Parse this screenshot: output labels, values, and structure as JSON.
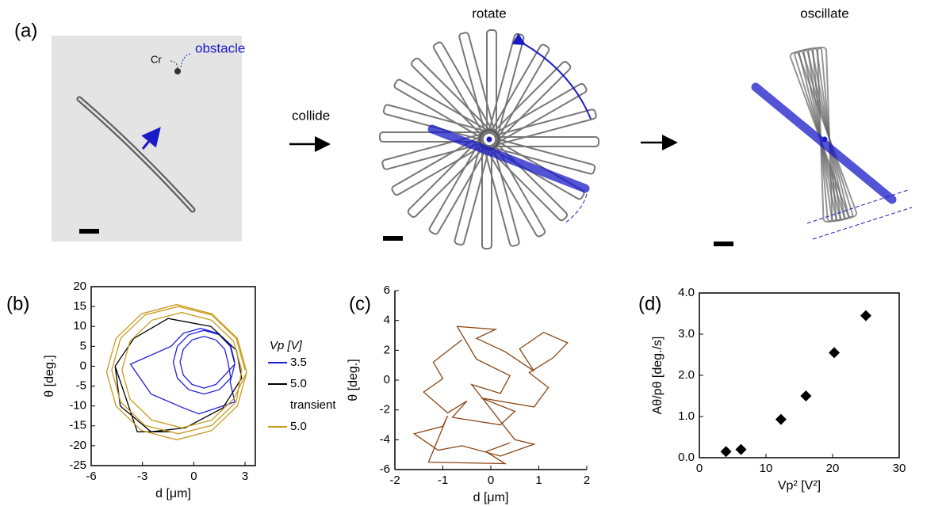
{
  "panel_a": {
    "label": "(a)",
    "cr": "Cr",
    "obstacle": "obstacle",
    "collide": "collide",
    "rotate": "rotate",
    "oscillate": "oscillate"
  },
  "chart_data": [
    {
      "type": "line",
      "panel_label": "(b)",
      "frame": true,
      "xlim": [
        -6,
        3.6
      ],
      "xticks": [
        -6,
        -3,
        0,
        3
      ],
      "ylim": [
        -25,
        20
      ],
      "yticks": [
        -25,
        -20,
        -15,
        -10,
        -5,
        0,
        5,
        10,
        15,
        20
      ],
      "xlabel": "d [μm]",
      "ylabel": "θ [deg.]",
      "legend_title": "Vp [V]",
      "series": [
        {
          "name": "3.5",
          "color": "#1f1fd6",
          "x": [
            2.4,
            2.16,
            1.5,
            0.6,
            -0.3,
            -0.96,
            -1.2,
            -0.96,
            -0.3,
            0.6,
            1.5,
            2.16,
            2.0,
            1.81,
            1.3,
            0.6,
            -0.1,
            -0.61,
            -0.8,
            -0.61,
            -0.1,
            0.6,
            1.3,
            1.81,
            2.4,
            2.13,
            1.4,
            0.4,
            -0.6,
            -1.33,
            -3.7,
            -2.5,
            -0.6,
            0.3,
            2.4,
            2.13,
            2.4
          ],
          "values": [
            1,
            5,
            7.9,
            9,
            7.9,
            5,
            1,
            -3,
            -5.9,
            -7,
            -5.9,
            -3,
            1,
            4.25,
            6.6,
            7.5,
            6.6,
            4.25,
            1,
            -2.25,
            -4.6,
            -5.5,
            -4.6,
            -2.25,
            0.5,
            5,
            8.3,
            9.5,
            8.3,
            5,
            0.5,
            -7,
            -10.5,
            -12,
            -9,
            -4,
            0.5
          ]
        },
        {
          "name": "5.0",
          "color": "#000000",
          "x": [
            -4.6,
            -3.5,
            -1.5,
            1,
            2.5,
            2.8,
            1.7,
            -0.5,
            -2.5,
            -4.3,
            -4.6,
            -3.3,
            -1.3
          ],
          "values": [
            0,
            7,
            12,
            10,
            4,
            -3,
            -10.5,
            -15.5,
            -16.5,
            -10,
            0,
            -16.5,
            -16.5
          ]
        },
        {
          "name": "5.0",
          "note": "transient",
          "color": "#c89a1e",
          "x": [
            3.0,
            2.48,
            1.05,
            -0.9,
            -2.85,
            -4.28,
            -4.8,
            -4.28,
            -2.85,
            -0.9,
            1.05,
            2.48,
            2.8,
            2.33,
            1.05,
            -0.7,
            -2.45,
            -3.73,
            -4.2,
            -3.73,
            -2.45,
            -0.7,
            1.05,
            2.33,
            3.1,
            2.55,
            1.05,
            -1,
            -3.05,
            -4.55,
            -5.1,
            -4.55,
            -3.05,
            -1,
            1.05,
            2.55,
            3.1
          ],
          "values": [
            -1,
            7,
            12.9,
            15,
            12.9,
            7,
            -1,
            -9,
            -14.9,
            -17,
            -14.9,
            -9,
            -1,
            6.25,
            11.56,
            13.5,
            11.56,
            6.25,
            -1,
            -8.25,
            -13.56,
            -15.5,
            -13.56,
            -8.25,
            -1.5,
            7,
            13.2,
            15.5,
            13.2,
            7,
            -1.5,
            -10,
            -16.2,
            -18.5,
            -16.2,
            -10,
            -1.5
          ]
        }
      ]
    },
    {
      "type": "line",
      "panel_label": "(c)",
      "frame": false,
      "xlim": [
        -2,
        2
      ],
      "xticks": [
        -2,
        -1,
        0,
        1,
        2
      ],
      "ylim": [
        -6,
        6
      ],
      "yticks": [
        -6,
        -4,
        -2,
        0,
        2,
        4,
        6
      ],
      "xlabel": "d [μm]",
      "ylabel": "θ [deg.]",
      "series": [
        {
          "color": "#8b4513",
          "x": [
            -0.6,
            -1.2,
            -1.0,
            -1.4,
            -0.9,
            -0.5,
            -0.8,
            0.2,
            0.5,
            -0.2,
            0.9,
            1.2,
            0.8,
            1.3,
            1.6,
            1.1,
            0.6,
            0.9,
            0.3,
            -0.3,
            0.1,
            -0.7,
            -0.3,
            0.4,
            0.2,
            -0.4,
            0.5,
            0.9,
            0.2,
            -0.6,
            -1.1,
            -1.6,
            -1.0,
            -0.9,
            -1.3,
            0.3,
            -0.1,
            0.4
          ],
          "values": [
            2.7,
            1.2,
            0.1,
            -0.8,
            -2.2,
            -1.4,
            -2.5,
            -3.0,
            -2.1,
            -1.2,
            -1.8,
            -0.5,
            0.5,
            1.5,
            2.5,
            3.2,
            2.1,
            0.6,
            1.9,
            2.8,
            3.4,
            3.6,
            1.4,
            0.3,
            -0.9,
            -0.3,
            -4.0,
            -4.3,
            -5.1,
            -4.4,
            -4.7,
            -3.6,
            -3.1,
            -2.4,
            -5.5,
            -5.6,
            -4.8,
            -4.2
          ]
        }
      ]
    },
    {
      "type": "scatter",
      "panel_label": "(d)",
      "frame": true,
      "xlim": [
        0,
        30
      ],
      "xticks": [
        0,
        10,
        20,
        30
      ],
      "ylim": [
        0,
        4
      ],
      "yticks": [
        {
          "value": 0,
          "label": "0.0"
        },
        {
          "value": 1,
          "label": "1.0"
        },
        {
          "value": 2,
          "label": "2.0"
        },
        {
          "value": 3,
          "label": "3.0"
        },
        {
          "value": 4,
          "label": "4.0"
        }
      ],
      "xlabel": "Vp² [V²]",
      "ylabel": "Aθ/pθ [deg./s]",
      "color": "#000000",
      "x": [
        4,
        6.25,
        12.25,
        16,
        20.25,
        25
      ],
      "values": [
        0.15,
        0.2,
        0.93,
        1.5,
        2.55,
        3.45
      ]
    }
  ]
}
